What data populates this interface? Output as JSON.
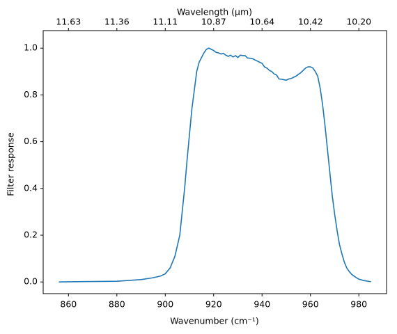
{
  "chart_data": {
    "type": "line",
    "x_label": "Wavenumber (cm⁻¹)",
    "y_label": "Filter response",
    "x2_label": "Wavelength (μm)",
    "x": [
      856,
      870,
      880,
      890,
      895,
      898,
      900,
      902,
      904,
      906,
      907,
      908,
      909,
      910,
      911,
      912,
      913,
      914,
      915,
      916,
      917,
      918,
      919,
      920,
      921,
      922,
      923,
      924,
      925,
      926,
      927,
      928,
      929,
      930,
      931,
      932,
      933,
      934,
      935,
      936,
      937,
      938,
      939,
      940,
      941,
      942,
      943,
      944,
      945,
      946,
      947,
      948,
      949,
      950,
      951,
      952,
      953,
      954,
      955,
      956,
      957,
      958,
      959,
      960,
      961,
      962,
      963,
      964,
      965,
      966,
      967,
      968,
      969,
      970,
      971,
      972,
      973,
      974,
      975,
      976,
      977,
      978,
      979,
      980,
      982,
      985
    ],
    "series": [
      {
        "color": "#1f77b4",
        "values": [
          0,
          0.002,
          0.003,
          0.01,
          0.018,
          0.025,
          0.035,
          0.06,
          0.11,
          0.2,
          0.3,
          0.4,
          0.52,
          0.63,
          0.74,
          0.82,
          0.9,
          0.94,
          0.96,
          0.98,
          0.995,
          1.0,
          0.995,
          0.99,
          0.982,
          0.98,
          0.975,
          0.978,
          0.97,
          0.965,
          0.97,
          0.962,
          0.968,
          0.96,
          0.97,
          0.968,
          0.968,
          0.958,
          0.957,
          0.955,
          0.95,
          0.945,
          0.94,
          0.935,
          0.92,
          0.915,
          0.905,
          0.9,
          0.89,
          0.885,
          0.868,
          0.867,
          0.865,
          0.863,
          0.868,
          0.87,
          0.875,
          0.88,
          0.888,
          0.895,
          0.905,
          0.915,
          0.92,
          0.92,
          0.915,
          0.9,
          0.88,
          0.83,
          0.76,
          0.67,
          0.57,
          0.47,
          0.37,
          0.29,
          0.22,
          0.16,
          0.12,
          0.085,
          0.06,
          0.045,
          0.033,
          0.025,
          0.018,
          0.012,
          0.006,
          0.001
        ]
      }
    ],
    "xlim": [
      849.55,
      991.45
    ],
    "xticks": [
      860,
      880,
      900,
      920,
      940,
      960,
      980
    ],
    "x2ticks": [
      {
        "value": 860,
        "label": "11.63"
      },
      {
        "value": 880,
        "label": "11.36"
      },
      {
        "value": 900,
        "label": "11.11"
      },
      {
        "value": 920,
        "label": "10.87"
      },
      {
        "value": 940,
        "label": "10.64"
      },
      {
        "value": 960,
        "label": "10.42"
      },
      {
        "value": 980,
        "label": "10.20"
      }
    ],
    "ylim": [
      -0.05,
      1.075
    ],
    "yticks": [
      {
        "value": 0,
        "label": "0.0"
      },
      0.2,
      0.4,
      0.6,
      0.8,
      {
        "value": 1,
        "label": "1.0"
      }
    ]
  }
}
